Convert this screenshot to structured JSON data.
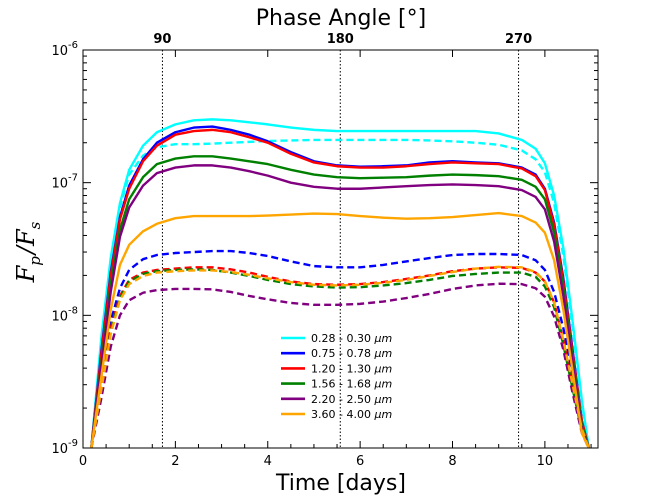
{
  "chart_data": {
    "type": "line",
    "xlabel": "Time [days]",
    "ylabel": "F_p/F_s",
    "ylabel_main1": "F",
    "ylabel_sub1": "p",
    "ylabel_slash": "/",
    "ylabel_main2": "F",
    "ylabel_sub2": "s",
    "top_axis_label": "Phase Angle [°]",
    "top_ticks": [
      {
        "x": 1.72,
        "label": "90"
      },
      {
        "x": 5.57,
        "label": "180"
      },
      {
        "x": 9.43,
        "label": "270"
      }
    ],
    "xlim": [
      0,
      11.15
    ],
    "ylim_log10": [
      -9,
      -6
    ],
    "yscale": "log",
    "x_ticks": [
      {
        "v": 0,
        "label": "0"
      },
      {
        "v": 2,
        "label": "2"
      },
      {
        "v": 4,
        "label": "4"
      },
      {
        "v": 6,
        "label": "6"
      },
      {
        "v": 8,
        "label": "8"
      },
      {
        "v": 10,
        "label": "10"
      }
    ],
    "y_ticks": [
      {
        "exp": -9,
        "base": "10",
        "sup": "-9"
      },
      {
        "exp": -8,
        "base": "10",
        "sup": "-8"
      },
      {
        "exp": -7,
        "base": "10",
        "sup": "-7"
      },
      {
        "exp": -6,
        "base": "10",
        "sup": "-6"
      }
    ],
    "vertical_lines_x": [
      1.72,
      5.57,
      9.43
    ],
    "legend_position": "lower-center",
    "legend_unit": "μm",
    "series": [
      {
        "name": "0.28 - 0.30",
        "color": "#00ffff",
        "style": "solid",
        "x": [
          0.18,
          0.4,
          0.6,
          0.8,
          1.0,
          1.3,
          1.6,
          2.0,
          2.4,
          2.8,
          3.2,
          3.6,
          4.0,
          4.5,
          5.0,
          5.5,
          6.0,
          6.5,
          7.0,
          7.5,
          8.0,
          8.5,
          9.0,
          9.5,
          9.8,
          10.0,
          10.2,
          10.4,
          10.6,
          10.8,
          10.95
        ],
        "y": [
          1e-09,
          7e-09,
          2.7e-08,
          7e-08,
          1.25e-07,
          1.9e-07,
          2.4e-07,
          2.75e-07,
          2.95e-07,
          3e-07,
          2.95e-07,
          2.85e-07,
          2.75e-07,
          2.6e-07,
          2.5e-07,
          2.45e-07,
          2.45e-07,
          2.45e-07,
          2.45e-07,
          2.45e-07,
          2.45e-07,
          2.45e-07,
          2.35e-07,
          2.1e-07,
          1.8e-07,
          1.4e-07,
          8e-08,
          3.2e-08,
          9e-09,
          2.3e-09,
          1e-09
        ]
      },
      {
        "name": "0.28 - 0.30",
        "color": "#00ffff",
        "style": "dashed",
        "legend": false,
        "x": [
          0.18,
          0.4,
          0.6,
          0.8,
          1.0,
          1.3,
          1.6,
          2.0,
          2.4,
          2.8,
          3.2,
          3.6,
          4.0,
          4.5,
          5.0,
          5.5,
          6.0,
          6.5,
          7.0,
          7.5,
          8.0,
          8.5,
          9.0,
          9.5,
          9.8,
          10.0,
          10.2,
          10.4,
          10.6,
          10.8,
          10.95
        ],
        "y": [
          1e-09,
          6.5e-09,
          2.5e-08,
          6.5e-08,
          1.15e-07,
          1.6e-07,
          1.85e-07,
          1.95e-07,
          1.95e-07,
          1.97e-07,
          2e-07,
          2.03e-07,
          2.06e-07,
          2.08e-07,
          2.1e-07,
          2.1e-07,
          2.1e-07,
          2.1e-07,
          2.1e-07,
          2.08e-07,
          2.05e-07,
          2e-07,
          1.93e-07,
          1.75e-07,
          1.5e-07,
          1.2e-07,
          7e-08,
          2.8e-08,
          8e-09,
          2.2e-09,
          1e-09
        ]
      },
      {
        "name": "0.75 - 0.78",
        "color": "#0000ff",
        "style": "solid",
        "x": [
          0.18,
          0.4,
          0.6,
          0.8,
          1.0,
          1.3,
          1.6,
          2.0,
          2.4,
          2.8,
          3.2,
          3.6,
          4.0,
          4.5,
          5.0,
          5.5,
          6.0,
          6.5,
          7.0,
          7.5,
          8.0,
          8.5,
          9.0,
          9.5,
          9.8,
          10.0,
          10.2,
          10.4,
          10.6,
          10.8,
          10.95
        ],
        "y": [
          1e-09,
          5.5e-09,
          2.1e-08,
          5.5e-08,
          9.5e-08,
          1.5e-07,
          2e-07,
          2.4e-07,
          2.6e-07,
          2.65e-07,
          2.5e-07,
          2.3e-07,
          2.05e-07,
          1.7e-07,
          1.45e-07,
          1.35e-07,
          1.32e-07,
          1.33e-07,
          1.35e-07,
          1.42e-07,
          1.45e-07,
          1.42e-07,
          1.4e-07,
          1.3e-07,
          1.15e-07,
          9e-08,
          5e-08,
          1.9e-08,
          5.5e-09,
          1.6e-09,
          1e-09
        ]
      },
      {
        "name": "0.75 - 0.78",
        "color": "#0000ff",
        "style": "dashed",
        "legend": false,
        "x": [
          0.18,
          0.4,
          0.6,
          0.8,
          1.0,
          1.3,
          1.6,
          2.0,
          2.4,
          2.8,
          3.2,
          3.6,
          4.0,
          4.5,
          5.0,
          5.5,
          6.0,
          6.5,
          7.0,
          7.5,
          8.0,
          8.5,
          9.0,
          9.5,
          9.8,
          10.0,
          10.2,
          10.4,
          10.6,
          10.8,
          10.95
        ],
        "y": [
          1e-09,
          3.2e-09,
          9e-09,
          1.6e-08,
          2.2e-08,
          2.65e-08,
          2.85e-08,
          2.95e-08,
          3e-08,
          3.05e-08,
          3.05e-08,
          2.95e-08,
          2.8e-08,
          2.55e-08,
          2.35e-08,
          2.3e-08,
          2.3e-08,
          2.4e-08,
          2.55e-08,
          2.7e-08,
          2.85e-08,
          2.9e-08,
          2.9e-08,
          2.85e-08,
          2.6e-08,
          2.2e-08,
          1.5e-08,
          8e-09,
          3.5e-09,
          1.5e-09,
          1e-09
        ]
      },
      {
        "name": "1.20 - 1.30",
        "color": "#ff0000",
        "style": "solid",
        "x": [
          0.18,
          0.4,
          0.6,
          0.8,
          1.0,
          1.3,
          1.6,
          2.0,
          2.4,
          2.8,
          3.2,
          3.6,
          4.0,
          4.5,
          5.0,
          5.5,
          6.0,
          6.5,
          7.0,
          7.5,
          8.0,
          8.5,
          9.0,
          9.5,
          9.8,
          10.0,
          10.2,
          10.4,
          10.6,
          10.8,
          10.95
        ],
        "y": [
          1e-09,
          5.2e-09,
          2e-08,
          5.3e-08,
          9e-08,
          1.45e-07,
          1.9e-07,
          2.3e-07,
          2.45e-07,
          2.5e-07,
          2.4e-07,
          2.2e-07,
          2e-07,
          1.65e-07,
          1.42e-07,
          1.33e-07,
          1.3e-07,
          1.3e-07,
          1.33e-07,
          1.38e-07,
          1.42e-07,
          1.4e-07,
          1.38e-07,
          1.28e-07,
          1.12e-07,
          8.8e-08,
          4.8e-08,
          1.8e-08,
          5.2e-09,
          1.6e-09,
          1e-09
        ]
      },
      {
        "name": "1.20 - 1.30",
        "color": "#ff0000",
        "style": "dashed",
        "legend": false,
        "x": [
          0.18,
          0.4,
          0.6,
          0.8,
          1.0,
          1.3,
          1.6,
          2.0,
          2.4,
          2.8,
          3.2,
          3.6,
          4.0,
          4.5,
          5.0,
          5.5,
          6.0,
          6.5,
          7.0,
          7.5,
          8.0,
          8.5,
          9.0,
          9.5,
          9.8,
          10.0,
          10.2,
          10.4,
          10.6,
          10.8,
          10.95
        ],
        "y": [
          1e-09,
          3e-09,
          8e-09,
          1.4e-08,
          1.85e-08,
          2.1e-08,
          2.2e-08,
          2.25e-08,
          2.3e-08,
          2.3e-08,
          2.22e-08,
          2.1e-08,
          1.95e-08,
          1.8e-08,
          1.72e-08,
          1.7e-08,
          1.72e-08,
          1.78e-08,
          1.88e-08,
          2e-08,
          2.15e-08,
          2.25e-08,
          2.3e-08,
          2.28e-08,
          2.1e-08,
          1.8e-08,
          1.25e-08,
          6.5e-09,
          3e-09,
          1.4e-09,
          1e-09
        ]
      },
      {
        "name": "1.56 - 1.68",
        "color": "#008000",
        "style": "solid",
        "x": [
          0.18,
          0.4,
          0.6,
          0.8,
          1.0,
          1.3,
          1.6,
          2.0,
          2.4,
          2.8,
          3.2,
          3.6,
          4.0,
          4.5,
          5.0,
          5.5,
          6.0,
          6.5,
          7.0,
          7.5,
          8.0,
          8.5,
          9.0,
          9.5,
          9.8,
          10.0,
          10.2,
          10.4,
          10.6,
          10.8,
          10.95
        ],
        "y": [
          1e-09,
          4.5e-09,
          1.7e-08,
          4.4e-08,
          7.5e-08,
          1.1e-07,
          1.38e-07,
          1.52e-07,
          1.58e-07,
          1.58e-07,
          1.52e-07,
          1.45e-07,
          1.38e-07,
          1.25e-07,
          1.15e-07,
          1.1e-07,
          1.08e-07,
          1.09e-07,
          1.1e-07,
          1.13e-07,
          1.15e-07,
          1.14e-07,
          1.12e-07,
          1.05e-07,
          9.3e-08,
          7.5e-08,
          4.2e-08,
          1.6e-08,
          4.8e-09,
          1.5e-09,
          1e-09
        ]
      },
      {
        "name": "1.56 - 1.68",
        "color": "#008000",
        "style": "dashed",
        "legend": false,
        "x": [
          0.18,
          0.4,
          0.6,
          0.8,
          1.0,
          1.3,
          1.6,
          2.0,
          2.4,
          2.8,
          3.2,
          3.6,
          4.0,
          4.5,
          5.0,
          5.5,
          6.0,
          6.5,
          7.0,
          7.5,
          8.0,
          8.5,
          9.0,
          9.5,
          9.8,
          10.0,
          10.2,
          10.4,
          10.6,
          10.8,
          10.95
        ],
        "y": [
          1e-09,
          2.9e-09,
          7.5e-09,
          1.35e-08,
          1.8e-08,
          2.05e-08,
          2.15e-08,
          2.2e-08,
          2.22e-08,
          2.2e-08,
          2.1e-08,
          1.98e-08,
          1.85e-08,
          1.72e-08,
          1.65e-08,
          1.62e-08,
          1.63e-08,
          1.68e-08,
          1.75e-08,
          1.85e-08,
          1.98e-08,
          2.05e-08,
          2.1e-08,
          2.1e-08,
          1.95e-08,
          1.65e-08,
          1.15e-08,
          6e-09,
          2.8e-09,
          1.35e-09,
          1e-09
        ]
      },
      {
        "name": "2.20 - 2.50",
        "color": "#800080",
        "style": "solid",
        "x": [
          0.18,
          0.4,
          0.6,
          0.8,
          1.0,
          1.3,
          1.6,
          2.0,
          2.4,
          2.8,
          3.2,
          3.6,
          4.0,
          4.5,
          5.0,
          5.5,
          6.0,
          6.5,
          7.0,
          7.5,
          8.0,
          8.5,
          9.0,
          9.5,
          9.8,
          10.0,
          10.2,
          10.4,
          10.6,
          10.8,
          10.95
        ],
        "y": [
          1e-09,
          4.2e-09,
          1.5e-08,
          3.9e-08,
          6.5e-08,
          9.5e-08,
          1.18e-07,
          1.3e-07,
          1.35e-07,
          1.35e-07,
          1.3e-07,
          1.22e-07,
          1.13e-07,
          1e-07,
          9.3e-08,
          9e-08,
          9e-08,
          9.2e-08,
          9.4e-08,
          9.6e-08,
          9.7e-08,
          9.6e-08,
          9.4e-08,
          8.8e-08,
          7.8e-08,
          6.3e-08,
          3.6e-08,
          1.4e-08,
          4.4e-09,
          1.4e-09,
          1e-09
        ]
      },
      {
        "name": "2.20 - 2.50",
        "color": "#800080",
        "style": "dashed",
        "legend": false,
        "x": [
          0.18,
          0.4,
          0.6,
          0.8,
          1.0,
          1.3,
          1.6,
          2.0,
          2.4,
          2.8,
          3.2,
          3.6,
          4.0,
          4.5,
          5.0,
          5.5,
          6.0,
          6.5,
          7.0,
          7.5,
          8.0,
          8.5,
          9.0,
          9.5,
          9.8,
          10.0,
          10.2,
          10.4,
          10.6,
          10.8,
          10.95
        ],
        "y": [
          1e-09,
          2.4e-09,
          5.8e-09,
          1e-08,
          1.3e-08,
          1.48e-08,
          1.55e-08,
          1.58e-08,
          1.58e-08,
          1.57e-08,
          1.5e-08,
          1.4e-08,
          1.32e-08,
          1.24e-08,
          1.2e-08,
          1.2e-08,
          1.22e-08,
          1.27e-08,
          1.35e-08,
          1.45e-08,
          1.58e-08,
          1.68e-08,
          1.73e-08,
          1.72e-08,
          1.6e-08,
          1.38e-08,
          9.8e-09,
          5.5e-09,
          2.6e-09,
          1.3e-09,
          1e-09
        ]
      },
      {
        "name": "3.60 - 4.00",
        "color": "#ffa500",
        "style": "solid",
        "x": [
          0.18,
          0.4,
          0.6,
          0.8,
          1.0,
          1.3,
          1.6,
          2.0,
          2.4,
          2.8,
          3.2,
          3.6,
          4.0,
          4.5,
          5.0,
          5.5,
          6.0,
          6.5,
          7.0,
          7.5,
          8.0,
          8.5,
          9.0,
          9.5,
          9.8,
          10.0,
          10.2,
          10.4,
          10.6,
          10.8,
          10.95
        ],
        "y": [
          1e-09,
          3.5e-09,
          1.1e-08,
          2.4e-08,
          3.4e-08,
          4.3e-08,
          4.9e-08,
          5.4e-08,
          5.6e-08,
          5.6e-08,
          5.6e-08,
          5.6e-08,
          5.65e-08,
          5.75e-08,
          5.85e-08,
          5.8e-08,
          5.6e-08,
          5.45e-08,
          5.35e-08,
          5.4e-08,
          5.5e-08,
          5.7e-08,
          5.9e-08,
          5.6e-08,
          5e-08,
          4.2e-08,
          2.6e-08,
          1.1e-08,
          3.8e-09,
          1.3e-09,
          1e-09
        ]
      },
      {
        "name": "3.60 - 4.00",
        "color": "#ffa500",
        "style": "dashed",
        "legend": false,
        "x": [
          0.18,
          0.4,
          0.6,
          0.8,
          1.0,
          1.3,
          1.6,
          2.0,
          2.4,
          2.8,
          3.2,
          3.6,
          4.0,
          4.5,
          5.0,
          5.5,
          6.0,
          6.5,
          7.0,
          7.5,
          8.0,
          8.5,
          9.0,
          9.5,
          9.8,
          10.0,
          10.2,
          10.4,
          10.6,
          10.8,
          10.95
        ],
        "y": [
          1e-09,
          2.8e-09,
          7.2e-09,
          1.3e-08,
          1.72e-08,
          1.98e-08,
          2.1e-08,
          2.15e-08,
          2.18e-08,
          2.18e-08,
          2.12e-08,
          2.02e-08,
          1.9e-08,
          1.78e-08,
          1.7e-08,
          1.68e-08,
          1.7e-08,
          1.76e-08,
          1.85e-08,
          1.98e-08,
          2.12e-08,
          2.25e-08,
          2.32e-08,
          2.3e-08,
          2.12e-08,
          1.8e-08,
          1.25e-08,
          6.5e-09,
          3e-09,
          1.4e-09,
          1e-09
        ]
      }
    ]
  }
}
